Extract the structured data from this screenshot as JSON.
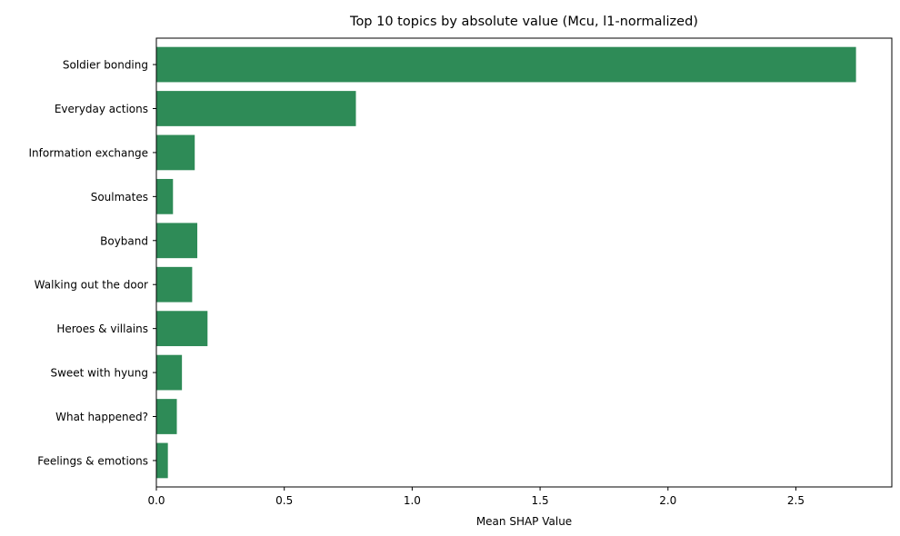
{
  "chart_data": {
    "type": "bar",
    "orientation": "horizontal",
    "title": "Top 10 topics by absolute value (Mcu, l1-normalized)",
    "xlabel": "Mean SHAP Value",
    "ylabel": "",
    "categories": [
      "Soldier bonding",
      "Everyday actions",
      "Information exchange",
      "Soulmates",
      "Boyband",
      "Walking out the door",
      "Heroes & villains",
      "Sweet with hyung",
      "What happened?",
      "Feelings & emotions"
    ],
    "values": [
      2.735,
      0.78,
      0.15,
      0.065,
      0.16,
      0.14,
      0.2,
      0.1,
      0.08,
      0.045
    ],
    "xlim": [
      0,
      2.875
    ],
    "xticks": [
      0.0,
      0.5,
      1.0,
      1.5,
      2.0,
      2.5
    ],
    "xtick_labels": [
      "0.0",
      "0.5",
      "1.0",
      "1.5",
      "2.0",
      "2.5"
    ],
    "bar_color": "#2e8b57",
    "grid": false,
    "legend": "none"
  }
}
